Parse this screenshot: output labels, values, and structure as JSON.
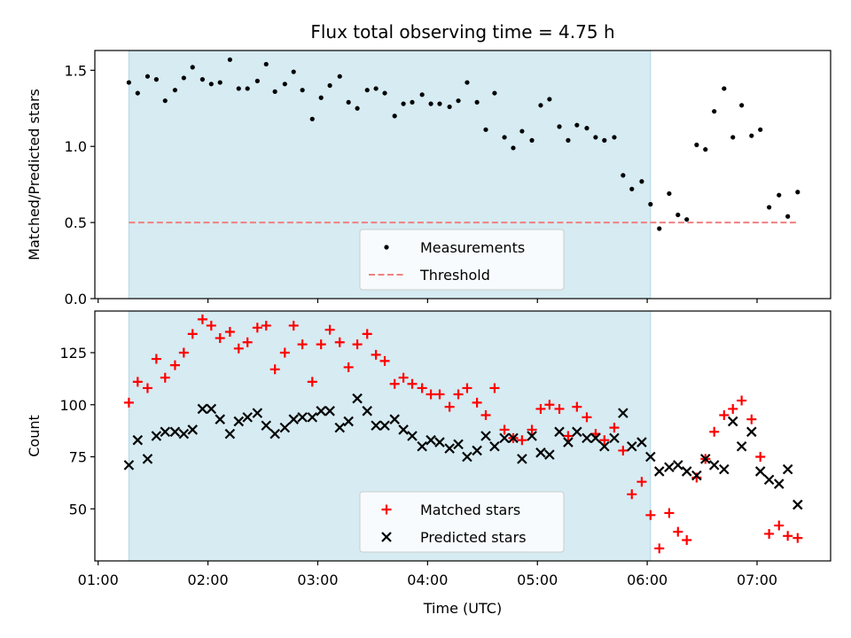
{
  "chart_data": {
    "type": "scatter",
    "title": "Flux total observing time = 4.75 h",
    "xlabel": "Time (UTC)",
    "x_unit": "hours UTC",
    "xlim": [
      0.97,
      7.67
    ],
    "x_ticks": [
      {
        "value": 1,
        "label": "01:00"
      },
      {
        "value": 2,
        "label": "02:00"
      },
      {
        "value": 3,
        "label": "03:00"
      },
      {
        "value": 4,
        "label": "04:00"
      },
      {
        "value": 5,
        "label": "05:00"
      },
      {
        "value": 6,
        "label": "06:00"
      },
      {
        "value": 7,
        "label": "07:00"
      }
    ],
    "observing_window": {
      "start": 1.28,
      "end": 6.03,
      "color": "#add8e6"
    },
    "panels": [
      {
        "ylabel": "Matched/Predicted stars",
        "ylim": [
          0,
          1.63
        ],
        "y_ticks": [
          {
            "value": 0,
            "label": "0.0"
          },
          {
            "value": 0.5,
            "label": "0.5"
          },
          {
            "value": 1.0,
            "label": "1.0"
          },
          {
            "value": 1.5,
            "label": "1.5"
          }
        ],
        "legend": "bottom-center",
        "series": [
          {
            "name": "Measurements",
            "marker": "dot",
            "color": "#000000",
            "x": [
              1.28,
              1.36,
              1.45,
              1.53,
              1.61,
              1.7,
              1.78,
              1.86,
              1.95,
              2.03,
              2.11,
              2.2,
              2.28,
              2.36,
              2.45,
              2.53,
              2.61,
              2.7,
              2.78,
              2.86,
              2.95,
              3.03,
              3.11,
              3.2,
              3.28,
              3.36,
              3.45,
              3.53,
              3.61,
              3.7,
              3.78,
              3.86,
              3.95,
              4.03,
              4.11,
              4.2,
              4.28,
              4.36,
              4.45,
              4.53,
              4.61,
              4.7,
              4.78,
              4.86,
              4.95,
              5.03,
              5.11,
              5.2,
              5.28,
              5.36,
              5.45,
              5.53,
              5.61,
              5.7,
              5.78,
              5.86,
              5.95,
              6.03,
              6.11,
              6.2,
              6.28,
              6.36,
              6.45,
              6.53,
              6.61,
              6.7,
              6.78,
              6.86,
              6.95,
              7.03,
              7.11,
              7.2,
              7.28,
              7.37
            ],
            "y": [
              1.42,
              1.35,
              1.46,
              1.44,
              1.3,
              1.37,
              1.45,
              1.52,
              1.44,
              1.41,
              1.42,
              1.57,
              1.38,
              1.38,
              1.43,
              1.54,
              1.36,
              1.41,
              1.49,
              1.37,
              1.18,
              1.32,
              1.4,
              1.46,
              1.29,
              1.25,
              1.37,
              1.38,
              1.35,
              1.2,
              1.28,
              1.29,
              1.34,
              1.28,
              1.28,
              1.26,
              1.3,
              1.42,
              1.29,
              1.11,
              1.35,
              1.06,
              0.99,
              1.1,
              1.04,
              1.27,
              1.31,
              1.13,
              1.04,
              1.14,
              1.12,
              1.06,
              1.04,
              1.06,
              0.81,
              0.72,
              0.77,
              0.62,
              0.46,
              0.69,
              0.55,
              0.52,
              1.01,
              0.98,
              1.23,
              1.38,
              1.06,
              1.27,
              1.07,
              1.11,
              0.6,
              0.68,
              0.54,
              0.7
            ]
          },
          {
            "name": "Threshold",
            "marker": "dashed-line",
            "color": "#f08080",
            "x": [
              1.28,
              7.37
            ],
            "y": [
              0.5,
              0.5
            ]
          }
        ]
      },
      {
        "ylabel": "Count",
        "ylim": [
          25,
          145
        ],
        "y_ticks": [
          {
            "value": 50,
            "label": "50"
          },
          {
            "value": 75,
            "label": "75"
          },
          {
            "value": 100,
            "label": "100"
          },
          {
            "value": 125,
            "label": "125"
          }
        ],
        "legend": "bottom-center",
        "series": [
          {
            "name": "Matched stars",
            "marker": "plus",
            "color": "#ff0000",
            "x": [
              1.28,
              1.36,
              1.45,
              1.53,
              1.61,
              1.7,
              1.78,
              1.86,
              1.95,
              2.03,
              2.11,
              2.2,
              2.28,
              2.36,
              2.45,
              2.53,
              2.61,
              2.7,
              2.78,
              2.86,
              2.95,
              3.03,
              3.11,
              3.2,
              3.28,
              3.36,
              3.45,
              3.53,
              3.61,
              3.7,
              3.78,
              3.86,
              3.95,
              4.03,
              4.11,
              4.2,
              4.28,
              4.36,
              4.45,
              4.53,
              4.61,
              4.7,
              4.78,
              4.86,
              4.95,
              5.03,
              5.11,
              5.2,
              5.28,
              5.36,
              5.45,
              5.53,
              5.61,
              5.7,
              5.78,
              5.86,
              5.95,
              6.03,
              6.11,
              6.2,
              6.28,
              6.36,
              6.45,
              6.53,
              6.61,
              6.7,
              6.78,
              6.86,
              6.95,
              7.03,
              7.11,
              7.2,
              7.28,
              7.37
            ],
            "y": [
              101,
              111,
              108,
              122,
              113,
              119,
              125,
              134,
              141,
              138,
              132,
              135,
              127,
              130,
              137,
              138,
              117,
              125,
              138,
              129,
              111,
              129,
              136,
              130,
              118,
              129,
              134,
              124,
              121,
              110,
              113,
              110,
              108,
              105,
              105,
              99,
              105,
              108,
              101,
              95,
              108,
              88,
              84,
              83,
              88,
              98,
              100,
              98,
              85,
              99,
              94,
              86,
              83,
              89,
              78,
              57,
              63,
              47,
              31,
              48,
              39,
              35,
              65,
              74,
              87,
              95,
              98,
              102,
              93,
              75,
              38,
              42,
              37,
              36
            ]
          },
          {
            "name": "Predicted stars",
            "marker": "x",
            "color": "#000000",
            "x": [
              1.28,
              1.36,
              1.45,
              1.53,
              1.61,
              1.7,
              1.78,
              1.86,
              1.95,
              2.03,
              2.11,
              2.2,
              2.28,
              2.36,
              2.45,
              2.53,
              2.61,
              2.7,
              2.78,
              2.86,
              2.95,
              3.03,
              3.11,
              3.2,
              3.28,
              3.36,
              3.45,
              3.53,
              3.61,
              3.7,
              3.78,
              3.86,
              3.95,
              4.03,
              4.11,
              4.2,
              4.28,
              4.36,
              4.45,
              4.53,
              4.61,
              4.7,
              4.78,
              4.86,
              4.95,
              5.03,
              5.11,
              5.2,
              5.28,
              5.36,
              5.45,
              5.53,
              5.61,
              5.7,
              5.78,
              5.86,
              5.95,
              6.03,
              6.11,
              6.2,
              6.28,
              6.36,
              6.45,
              6.53,
              6.61,
              6.7,
              6.78,
              6.86,
              6.95,
              7.03,
              7.11,
              7.2,
              7.28,
              7.37
            ],
            "y": [
              71,
              83,
              74,
              85,
              87,
              87,
              86,
              88,
              98,
              98,
              93,
              86,
              92,
              94,
              96,
              90,
              86,
              89,
              93,
              94,
              94,
              97,
              97,
              89,
              92,
              103,
              97,
              90,
              90,
              93,
              88,
              85,
              80,
              83,
              82,
              79,
              81,
              75,
              78,
              85,
              80,
              84,
              84,
              74,
              85,
              77,
              76,
              87,
              82,
              87,
              84,
              84,
              80,
              84,
              96,
              80,
              82,
              75,
              68,
              70,
              71,
              68,
              66,
              74,
              71,
              69,
              92,
              80,
              87,
              68,
              64,
              62,
              69,
              52
            ]
          }
        ]
      }
    ]
  }
}
